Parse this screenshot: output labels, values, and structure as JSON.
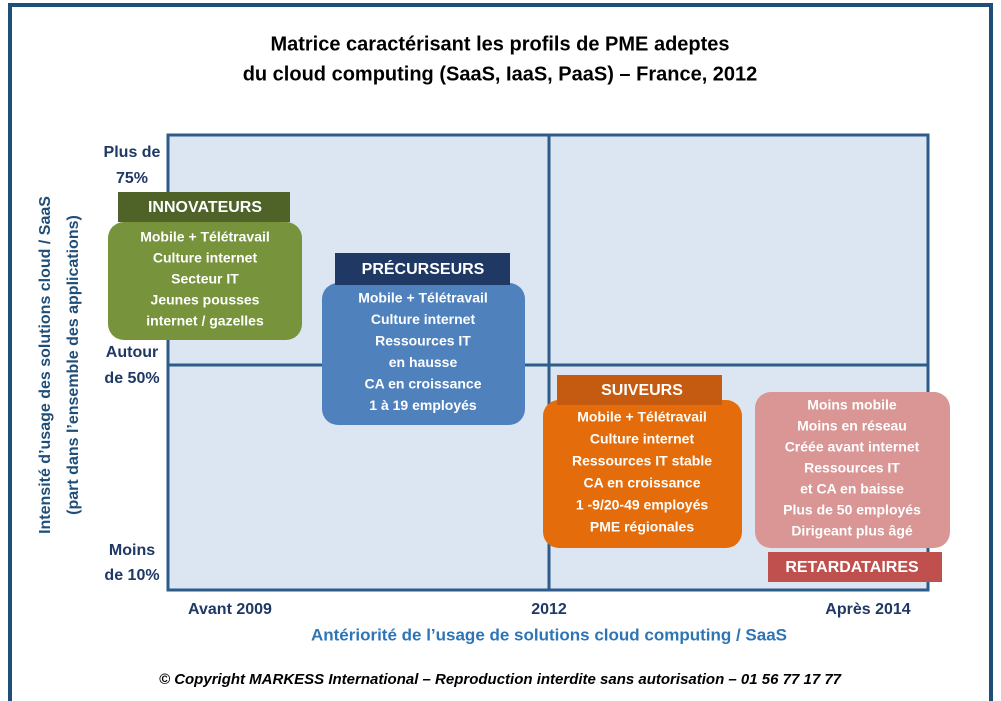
{
  "title": [
    "Matrice caractérisant les profils de PME adeptes",
    "du cloud computing (SaaS, IaaS, PaaS) – France, 2012"
  ],
  "y_axis": {
    "title": [
      "Intensité d’usage des solutions cloud / SaaS",
      "(part dans l’ensemble des applications)"
    ],
    "labels": [
      [
        "Plus de",
        "75%"
      ],
      [
        "Autour",
        "de 50%"
      ],
      [
        "Moins",
        "de 10%"
      ]
    ]
  },
  "x_axis": {
    "title": "Antériorité de l’usage de solutions cloud computing / SaaS",
    "labels": [
      "Avant 2009",
      "2012",
      "Après 2014"
    ]
  },
  "profiles": [
    {
      "label": "INNOVATEURS",
      "items": [
        "Mobile + Télétravail",
        "Culture internet",
        "Secteur IT",
        "Jeunes pousses",
        "internet / gazelles"
      ]
    },
    {
      "label": "PRÉCURSEURS",
      "items": [
        "Mobile + Télétravail",
        "Culture internet",
        "Ressources IT",
        "en hausse",
        "CA en croissance",
        "1 à 19 employés"
      ]
    },
    {
      "label": "SUIVEURS",
      "items": [
        "Mobile + Télétravail",
        "Culture internet",
        "Ressources IT stable",
        "CA en croissance",
        "1 -9/20-49 employés",
        "PME régionales"
      ]
    },
    {
      "label": "RETARDATAIRES",
      "items": [
        "Moins mobile",
        "Moins en réseau",
        "Créée avant internet",
        "Ressources IT",
        "et CA en baisse",
        "Plus de 50 employés",
        "Dirigeant plus âgé"
      ]
    }
  ],
  "copyright": "© Copyright MARKESS International – Reproduction interdite sans autorisation – 01 56 77 17 77"
}
